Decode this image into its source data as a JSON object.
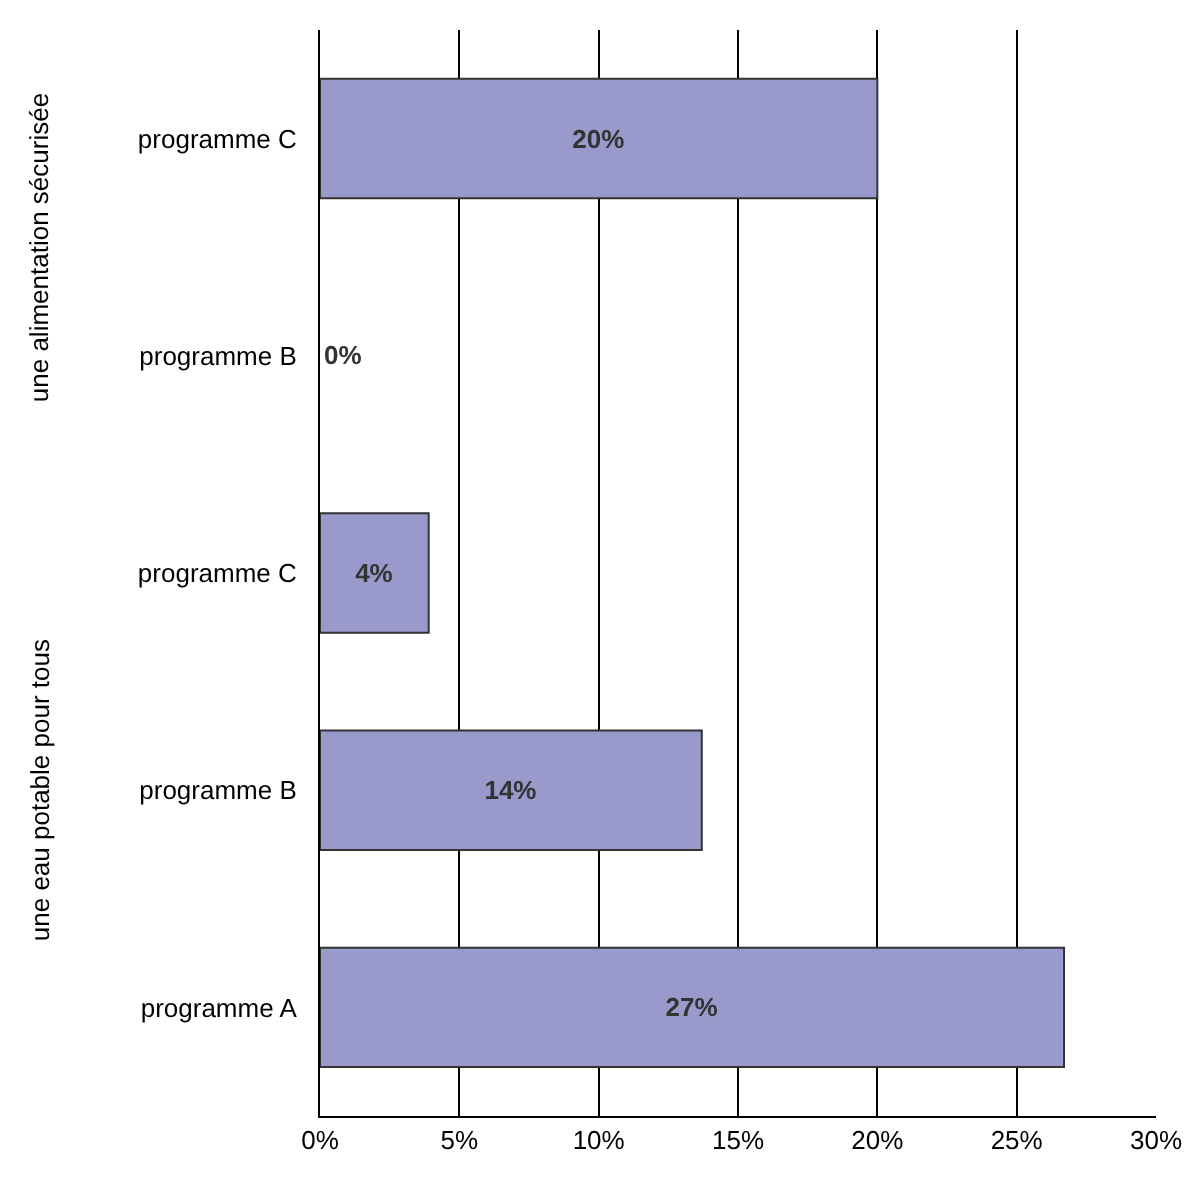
{
  "chart_data": {
    "type": "bar",
    "orientation": "horizontal",
    "categories": [
      "programme C",
      "programme B",
      "programme C",
      "programme B",
      "programme A"
    ],
    "values": [
      20,
      0,
      3.9,
      13.7,
      26.7
    ],
    "value_labels": [
      "20%",
      "0%",
      "4%",
      "14%",
      "27%"
    ],
    "color": "#9999cc",
    "xlim": [
      0,
      30
    ],
    "xticks": [
      {
        "value": 0,
        "label": "0%"
      },
      {
        "value": 5,
        "label": "5%"
      },
      {
        "value": 10,
        "label": "10%"
      },
      {
        "value": 15,
        "label": "15%"
      },
      {
        "value": 20,
        "label": "20%"
      },
      {
        "value": 25,
        "label": "25%"
      },
      {
        "value": 30,
        "label": "30%"
      }
    ],
    "grid": "x",
    "legend": false,
    "annotations": [
      "une alimentation sécurisée",
      "une eau potable pour tous"
    ]
  }
}
